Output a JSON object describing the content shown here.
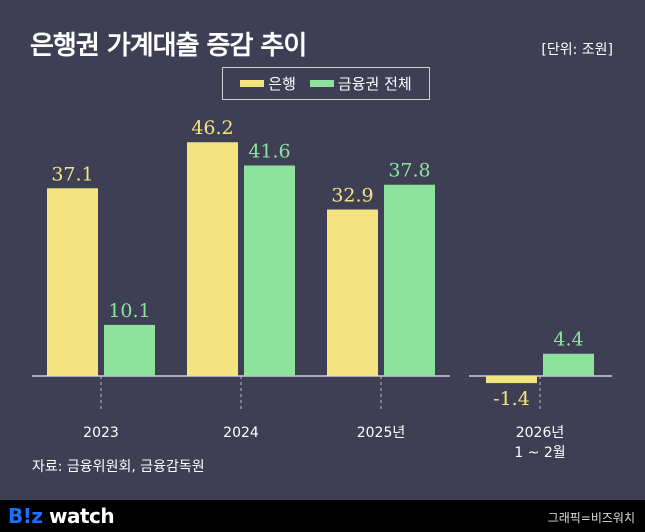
{
  "title": "은행권 가계대출 증감 추이",
  "unit": "[단위: 조원]",
  "source": "자료: 금융위원회, 금융감독원",
  "footer": {
    "logo": "B!z watch",
    "logo_b": "B!z",
    "logo_rest": " watch",
    "credit": "그래픽=비즈워치"
  },
  "colors": {
    "bank": "#f3e47f",
    "total": "#8de39c",
    "background": "#3e3e55"
  },
  "chart_data": {
    "type": "bar",
    "title": "은행권 가계대출 증감 추이",
    "categories": [
      "2023",
      "2024",
      "2025년",
      "2026년\n1 ~ 2월"
    ],
    "category_lines": [
      [
        "2023"
      ],
      [
        "2024"
      ],
      [
        "2025년"
      ],
      [
        "2026년",
        "1 ~ 2월"
      ]
    ],
    "series": [
      {
        "name": "은행",
        "values": [
          37.1,
          46.2,
          32.9,
          -1.4
        ]
      },
      {
        "name": "금융권 전체",
        "values": [
          10.1,
          41.6,
          37.8,
          4.4
        ]
      }
    ],
    "legend": "top-center",
    "grid": false
  }
}
